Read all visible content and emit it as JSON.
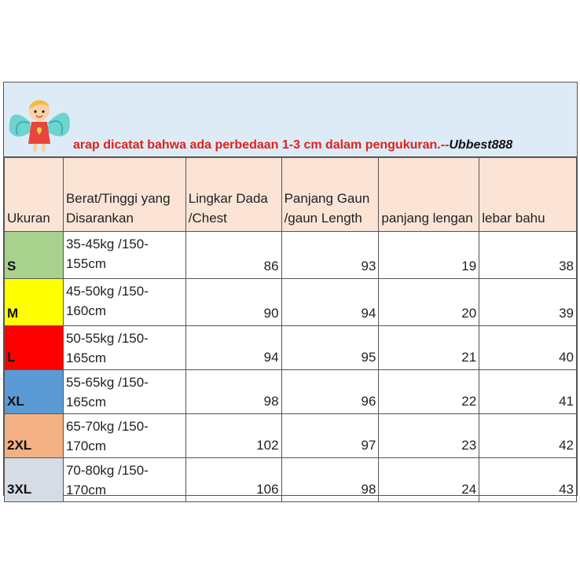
{
  "notice": {
    "text": "arap dicatat bahwa ada perbedaan 1-3 cm dalam pengukuran.--",
    "brand": "Ubbest888"
  },
  "colors": {
    "banner": "#ddebf7",
    "header": "#fbe4d6",
    "notice": "#e0221b"
  },
  "headers": {
    "size": "Ukuran",
    "weight_line1": "Berat/Tinggi yang",
    "weight_line2": "Disarankan",
    "chest_line1": "Lingkar Dada",
    "chest_line2": "/Chest",
    "length_line1": "Panjang Gaun",
    "length_line2": "/gaun Length",
    "sleeve": "panjang lengan",
    "shoulder": "lebar bahu"
  },
  "rows": [
    {
      "size": "S",
      "color": "#a9d18e",
      "w1": "35-45kg /150-",
      "w2": "155cm",
      "chest": "86",
      "length": "93",
      "sleeve": "19",
      "shoulder": "38"
    },
    {
      "size": "M",
      "color": "#ffff00",
      "w1": "45-50kg /150-",
      "w2": "160cm",
      "chest": "90",
      "length": "94",
      "sleeve": "20",
      "shoulder": "39"
    },
    {
      "size": "L",
      "color": "#ff0000",
      "w1": "50-55kg /150-",
      "w2": "165cm",
      "chest": "94",
      "length": "95",
      "sleeve": "21",
      "shoulder": "40"
    },
    {
      "size": "XL",
      "color": "#5b9bd5",
      "w1": "55-65kg /150-",
      "w2": "165cm",
      "chest": "98",
      "length": "96",
      "sleeve": "22",
      "shoulder": "41"
    },
    {
      "size": "2XL",
      "color": "#f4b183",
      "w1": "65-70kg /150-",
      "w2": "170cm",
      "chest": "102",
      "length": "97",
      "sleeve": "23",
      "shoulder": "42"
    },
    {
      "size": "3XL",
      "color": "#d6dce5",
      "w1": "70-80kg /150-",
      "w2": "170cm",
      "chest": "106",
      "length": "98",
      "sleeve": "24",
      "shoulder": "43"
    }
  ]
}
